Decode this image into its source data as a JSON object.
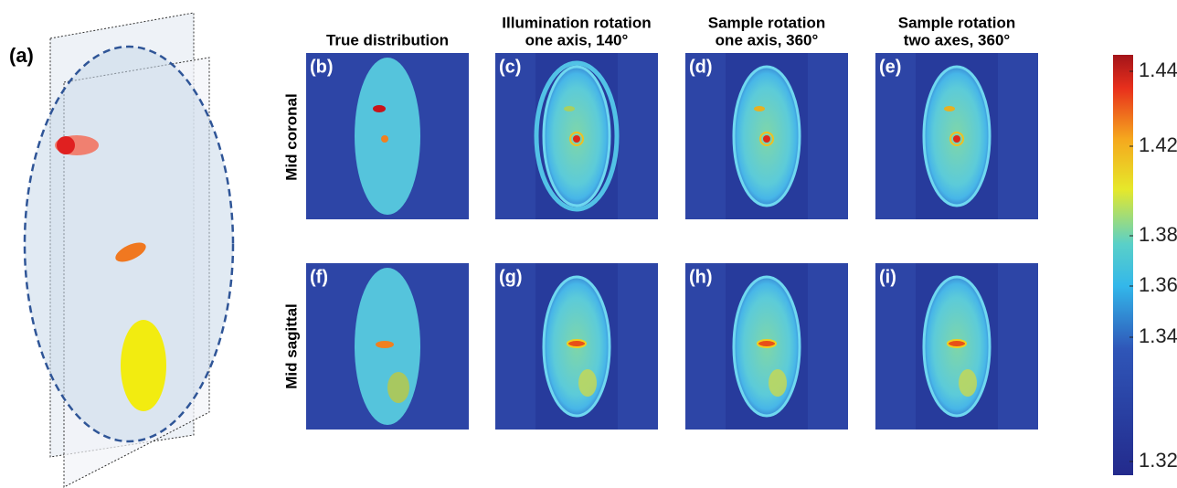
{
  "panel_a": {
    "label": "(a)"
  },
  "columns": [
    {
      "lines": [
        "True distribution"
      ]
    },
    {
      "lines": [
        "Illumination rotation",
        "one axis, 140°"
      ]
    },
    {
      "lines": [
        "Sample rotation",
        "one axis, 360°"
      ]
    },
    {
      "lines": [
        "Sample rotation",
        "two axes, 360°"
      ]
    }
  ],
  "rows": [
    "Mid coronal",
    "Mid sagittal"
  ],
  "panels": [
    "(b)",
    "(c)",
    "(d)",
    "(e)",
    "(f)",
    "(g)",
    "(h)",
    "(i)"
  ],
  "colorbar": {
    "ticks": [
      1.44,
      1.42,
      1.38,
      1.36,
      1.34,
      1.32
    ]
  }
}
